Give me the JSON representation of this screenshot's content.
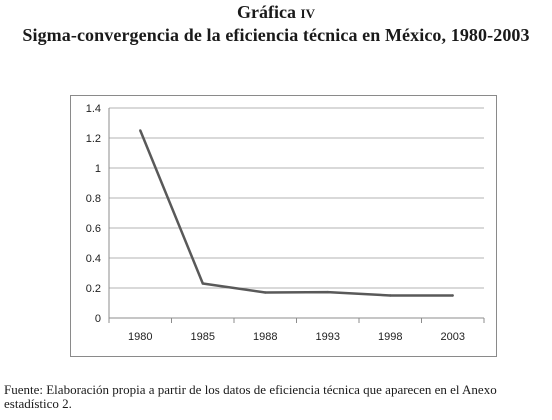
{
  "header": {
    "figure_word": "Gráfica",
    "figure_number": "iv",
    "title": "Sigma-convergencia de la eficiencia técnica en México, 1980-2003"
  },
  "chart_data": {
    "type": "line",
    "categories": [
      "1980",
      "1985",
      "1988",
      "1993",
      "1998",
      "2003"
    ],
    "series": [
      {
        "values": [
          1.25,
          0.23,
          0.17,
          0.173,
          0.15,
          0.15
        ]
      }
    ],
    "title": "",
    "xlabel": "",
    "ylabel": "",
    "ylim": [
      0,
      1.4
    ],
    "yticks": [
      0,
      0.2,
      0.4,
      0.6,
      0.8,
      1,
      1.2,
      1.4
    ],
    "ytick_labels": [
      "0",
      "0.2",
      "0.4",
      "0.6",
      "0.8",
      "1",
      "1.2",
      "1.4"
    ],
    "grid": true,
    "legend": "none",
    "colors": {
      "line": "#595959",
      "grid": "#b3b3b3",
      "axis": "#8c8c8c",
      "text": "#222222"
    }
  },
  "footer": {
    "source": "Fuente: Elaboración propia a partir de los datos de eficiencia técnica que aparecen en el Anexo estadístico 2."
  }
}
